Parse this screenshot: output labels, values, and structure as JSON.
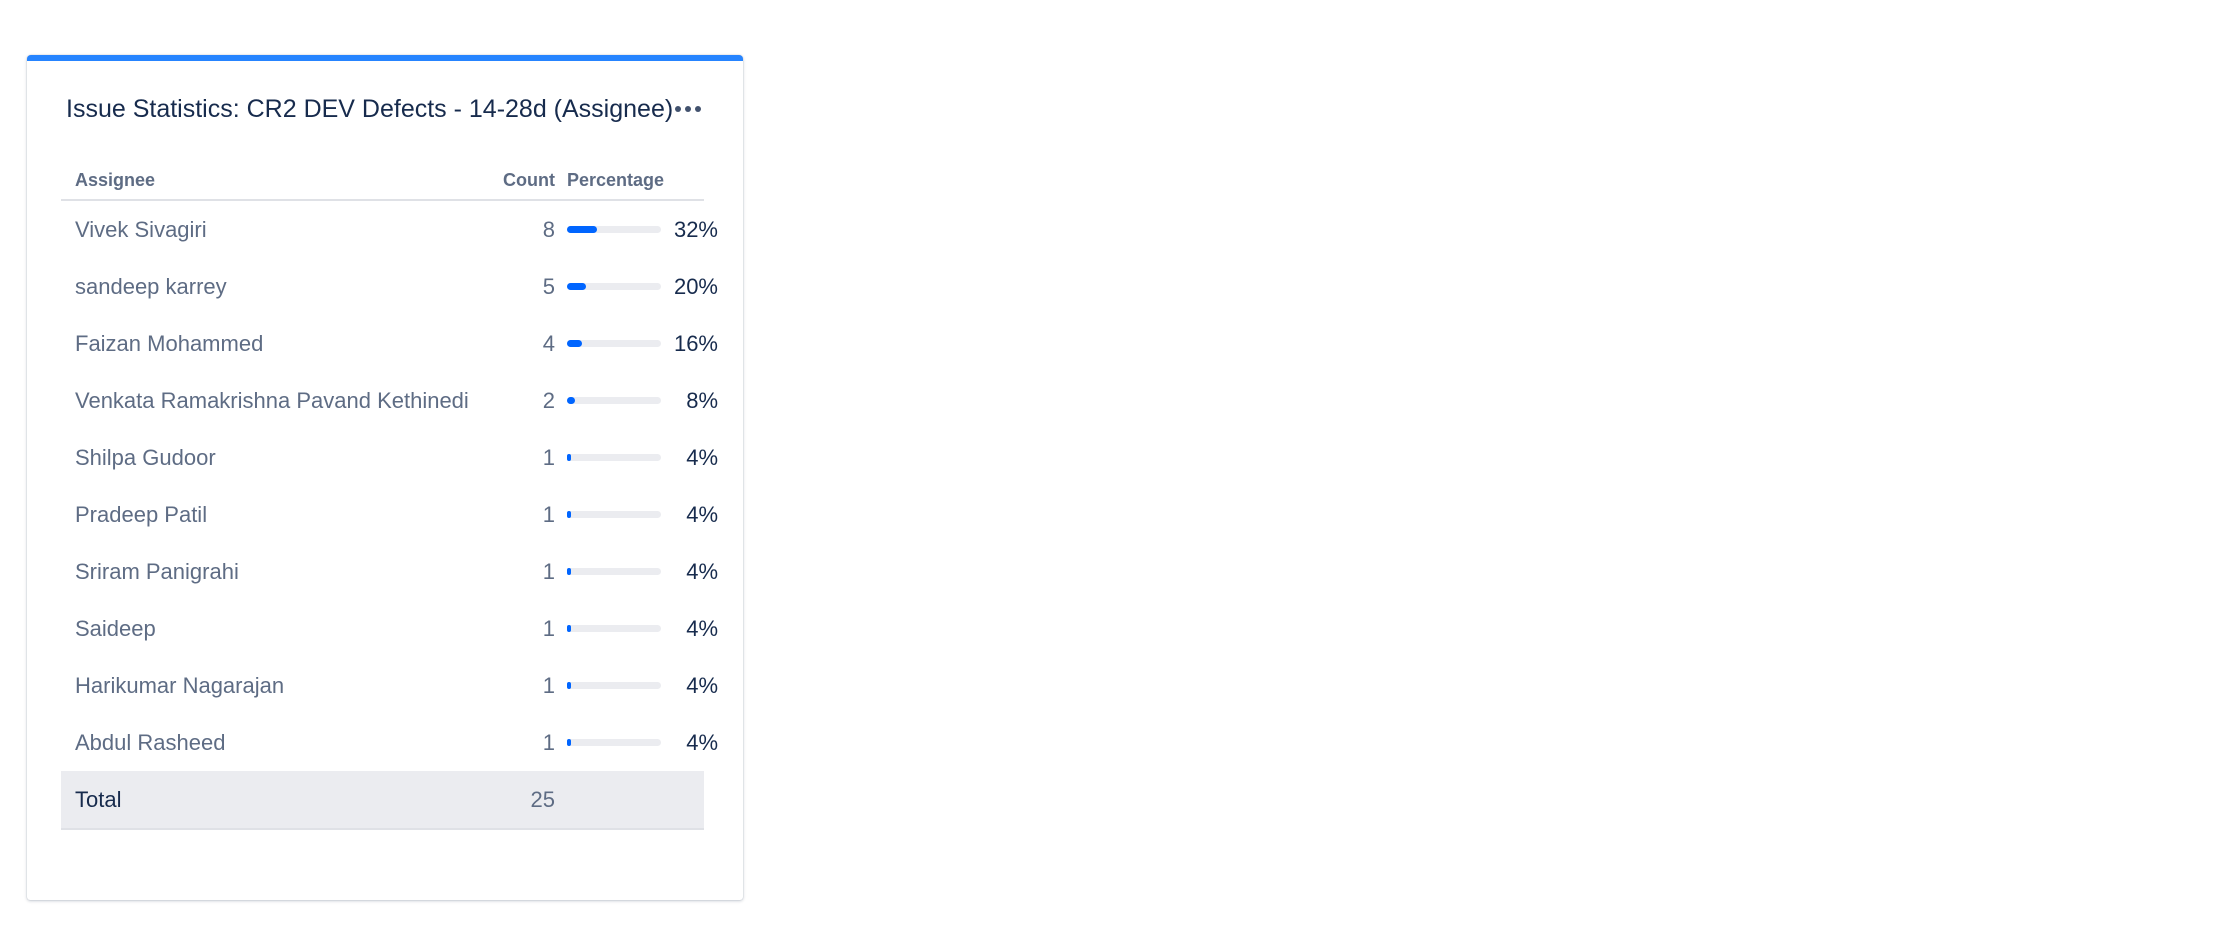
{
  "gadget": {
    "title": "Issue Statistics: CR2 DEV Defects - 14-28d (Assignee)",
    "accent_color": "#2684ff",
    "menu_icon": "more-horizontal-icon"
  },
  "table": {
    "headers": {
      "assignee": "Assignee",
      "count": "Count",
      "percentage": "Percentage"
    },
    "rows": [
      {
        "name": "Vivek Sivagiri",
        "count": "8",
        "percent": 32,
        "percent_label": "32%"
      },
      {
        "name": "sandeep karrey",
        "count": "5",
        "percent": 20,
        "percent_label": "20%"
      },
      {
        "name": "Faizan Mohammed",
        "count": "4",
        "percent": 16,
        "percent_label": "16%"
      },
      {
        "name": "Venkata Ramakrishna Pavand Kethinedi",
        "count": "2",
        "percent": 8,
        "percent_label": "8%"
      },
      {
        "name": "Shilpa Gudoor",
        "count": "1",
        "percent": 4,
        "percent_label": "4%"
      },
      {
        "name": "Pradeep Patil",
        "count": "1",
        "percent": 4,
        "percent_label": "4%"
      },
      {
        "name": "Sriram Panigrahi",
        "count": "1",
        "percent": 4,
        "percent_label": "4%"
      },
      {
        "name": "Saideep",
        "count": "1",
        "percent": 4,
        "percent_label": "4%"
      },
      {
        "name": "Harikumar Nagarajan",
        "count": "1",
        "percent": 4,
        "percent_label": "4%"
      },
      {
        "name": "Abdul Rasheed",
        "count": "1",
        "percent": 4,
        "percent_label": "4%"
      }
    ],
    "total": {
      "label": "Total",
      "count": "25"
    },
    "bar_color": "#0065ff"
  }
}
